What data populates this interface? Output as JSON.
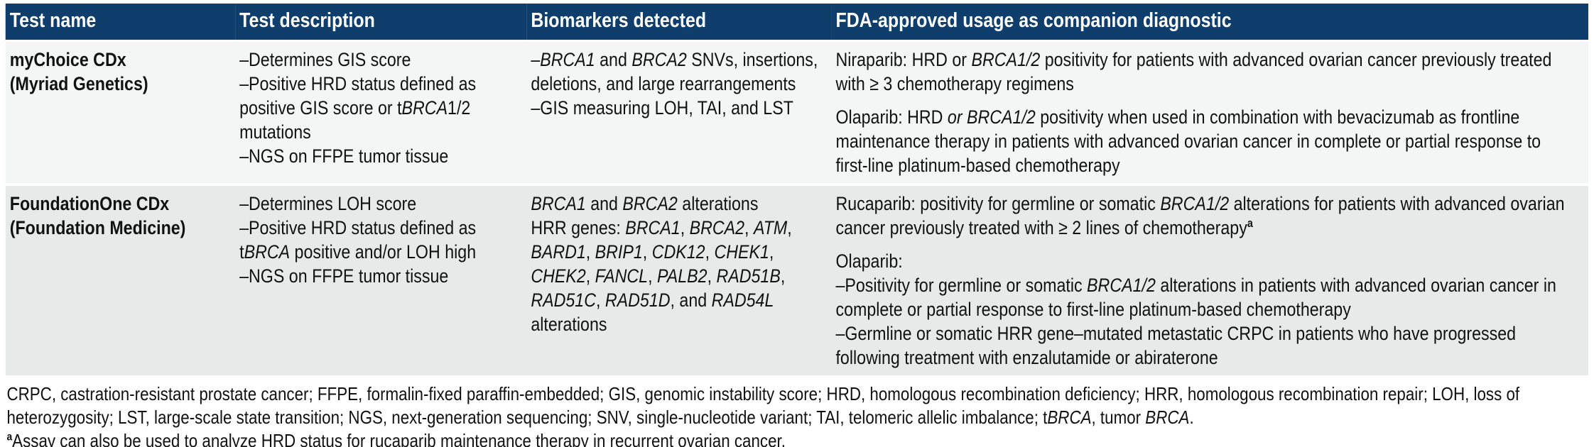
{
  "colors": {
    "header_bg": "#0f3d6c",
    "header_text": "#ffffff",
    "row1_bg": "#f4f5f5",
    "row2_bg": "#e8e9e9",
    "body_text": "#111111",
    "page_bg": "#ffffff"
  },
  "table": {
    "headers": [
      "Test name",
      "Test description",
      "Biomarkers detected",
      "FDA-approved usage as companion diagnostic"
    ],
    "rows": [
      {
        "test_name": [
          [
            "myChoice CDx\n(Myriad Genetics)"
          ]
        ],
        "description": [
          [
            "–Determines GIS score\n–Positive HRD status defined as positive GIS score or t",
            {
              "t": "BRCA",
              "i": true
            },
            "1/2 mutations\n–NGS on FFPE tumor tissue"
          ]
        ],
        "biomarkers": [
          [
            "–",
            {
              "t": "BRCA1",
              "i": true
            },
            " and ",
            {
              "t": "BRCA2",
              "i": true
            },
            " SNVs, insertions, deletions, and large rearrangements\n–GIS measuring LOH, TAI, and LST"
          ]
        ],
        "fda_usage": [
          [
            "Niraparib: HRD or ",
            {
              "t": "BRCA1/2",
              "i": true
            },
            " positivity for patients with advanced ovarian cancer previously treated with ≥ 3 chemotherapy regimens"
          ],
          [
            "Olaparib: HRD ",
            {
              "t": "or BRCA1/2",
              "i": true
            },
            " positivity when used in combination with bevacizumab as frontline maintenance therapy in patients with advanced ovarian cancer in complete or partial response to first-line platinum-based chemotherapy"
          ]
        ]
      },
      {
        "test_name": [
          [
            "FoundationOne CDx\n(Foundation Medicine)"
          ]
        ],
        "description": [
          [
            "–Determines LOH score\n–Positive HRD status defined as t",
            {
              "t": "BRCA",
              "i": true
            },
            " positive and/or LOH high\n–NGS on FFPE tumor tissue"
          ]
        ],
        "biomarkers": [
          [
            {
              "t": "BRCA1",
              "i": true
            },
            " and ",
            {
              "t": "BRCA2",
              "i": true
            },
            " alterations\nHRR genes: ",
            {
              "t": "BRCA1",
              "i": true
            },
            ", ",
            {
              "t": "BRCA2",
              "i": true
            },
            ", ",
            {
              "t": "ATM",
              "i": true
            },
            ", ",
            {
              "t": "BARD1",
              "i": true
            },
            ", ",
            {
              "t": "BRIP1",
              "i": true
            },
            ", ",
            {
              "t": "CDK12",
              "i": true
            },
            ", ",
            {
              "t": "CHEK1",
              "i": true
            },
            ", ",
            {
              "t": "CHEK2",
              "i": true
            },
            ", ",
            {
              "t": "FANCL",
              "i": true
            },
            ", ",
            {
              "t": "PALB2",
              "i": true
            },
            ", ",
            {
              "t": "RAD51B",
              "i": true
            },
            ", ",
            {
              "t": "RAD51C",
              "i": true
            },
            ", ",
            {
              "t": "RAD51D",
              "i": true
            },
            ", and ",
            {
              "t": "RAD54L",
              "i": true
            },
            " alterations"
          ]
        ],
        "fda_usage": [
          [
            "Rucaparib: positivity for germline or somatic ",
            {
              "t": "BRCA1/2",
              "i": true
            },
            " alterations for patients with advanced ovarian cancer previously treated with ≥ 2 lines of chemotherapy",
            {
              "t": "a",
              "sup": true,
              "b": true
            }
          ],
          [
            "Olaparib:\n–Positivity for germline or somatic ",
            {
              "t": "BRCA1/2",
              "i": true
            },
            " alterations in patients with advanced ovarian cancer in complete or partial response to first-line platinum-based chemotherapy\n–Germline or somatic HRR gene–mutated metastatic CRPC in patients who have progressed following treatment with enzalutamide or abiraterone"
          ]
        ]
      }
    ]
  },
  "footnotes": {
    "abbreviations": [
      [
        "CRPC, castration-resistant prostate cancer; FFPE, formalin-fixed paraffin-embedded; GIS, genomic instability score; HRD, homologous recombination deficiency; HRR, homologous recombination repair; LOH, loss of heterozygosity; LST, large-scale state transition; NGS, next-generation sequencing; SNV, single-nucleotide variant; TAI, telomeric allelic imbalance; t",
        {
          "t": "BRCA",
          "i": true
        },
        ", tumor ",
        {
          "t": "BRCA",
          "i": true
        },
        "."
      ]
    ],
    "assay_note": [
      [
        {
          "t": "a",
          "sup": true,
          "b": true
        },
        "Assay can also be used to analyze HRD status for rucaparib maintenance therapy in recurrent ovarian cancer."
      ]
    ]
  }
}
